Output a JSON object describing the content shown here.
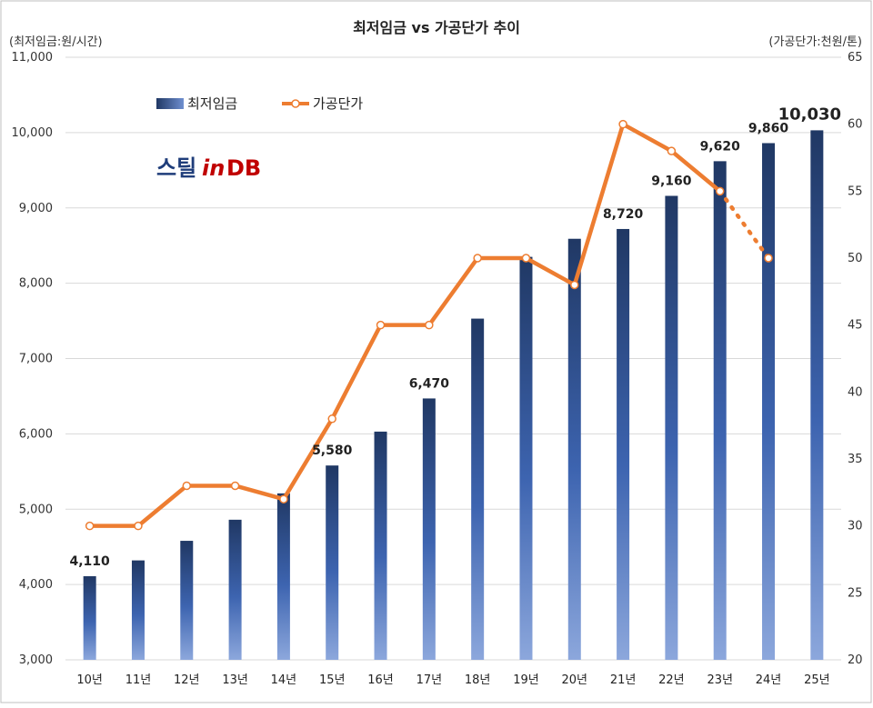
{
  "chart_data": {
    "type": "bar+line",
    "title": "최저임금 vs 가공단가 추이",
    "left_axis_label": "(최저임금:원/시간)",
    "right_axis_label": "(가공단가:천원/톤)",
    "categories": [
      "10년",
      "11년",
      "12년",
      "13년",
      "14년",
      "15년",
      "16년",
      "17년",
      "18년",
      "19년",
      "20년",
      "21년",
      "22년",
      "23년",
      "24년",
      "25년"
    ],
    "series": [
      {
        "name": "최저임금",
        "type": "bar",
        "axis": "left",
        "values": [
          4110,
          4320,
          4580,
          4860,
          5210,
          5580,
          6030,
          6470,
          7530,
          8350,
          8590,
          8720,
          9160,
          9620,
          9860,
          10030
        ],
        "color": "#2e4a87"
      },
      {
        "name": "가공단가",
        "type": "line",
        "axis": "right",
        "values": [
          30,
          30,
          33,
          33,
          32,
          38,
          45,
          45,
          50,
          50,
          48,
          60,
          58,
          55,
          50,
          null
        ],
        "dashed_from_index": 13,
        "color": "#ed7d31"
      }
    ],
    "data_labels": [
      {
        "index": 0,
        "text": "4,110"
      },
      {
        "index": 5,
        "text": "5,580"
      },
      {
        "index": 7,
        "text": "6,470"
      },
      {
        "index": 11,
        "text": "8,720"
      },
      {
        "index": 12,
        "text": "9,160"
      },
      {
        "index": 13,
        "text": "9,620"
      },
      {
        "index": 14,
        "text": "9,860"
      },
      {
        "index": 15,
        "text": "10,030",
        "emphasis": true
      }
    ],
    "left_ylim": [
      3000,
      11000
    ],
    "left_ticks": [
      "3,000",
      "4,000",
      "5,000",
      "6,000",
      "7,000",
      "8,000",
      "9,000",
      "10,000",
      "11,000"
    ],
    "right_ylim": [
      20,
      65
    ],
    "right_ticks": [
      "20",
      "25",
      "30",
      "35",
      "40",
      "45",
      "50",
      "55",
      "60",
      "65"
    ],
    "grid": true,
    "legend_position": "top-left"
  },
  "logo": {
    "text_main": "스틸",
    "text_in": "in",
    "text_db": "DB",
    "colors": {
      "main": "#1f3d7a",
      "in": "#c00000",
      "db": "#c00000"
    }
  }
}
